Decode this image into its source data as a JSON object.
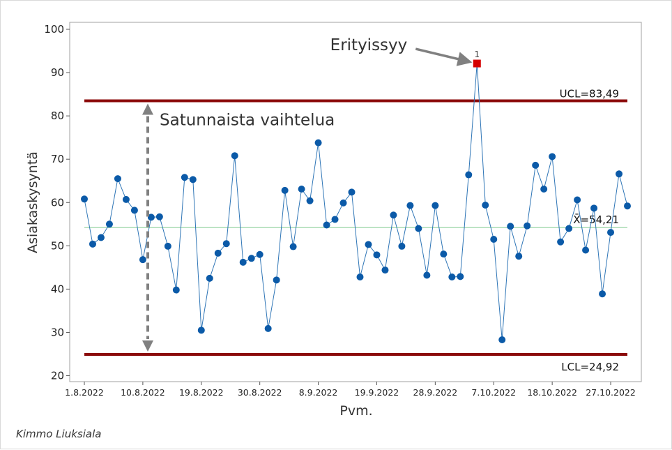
{
  "colors": {
    "series_line": "#2e75b6",
    "points": "#0b5aa8",
    "special_point": "#d50000",
    "control_limit": "#8b0a0a",
    "center_line": "#8fd19e",
    "annotation_arrow": "#808080",
    "frame": "#a0a0a0"
  },
  "chart_data": {
    "type": "line",
    "ylabel": "Asiakaskysyntä",
    "xlabel": "Pvm.",
    "ylim": [
      19,
      101
    ],
    "yticks": [
      20,
      30,
      40,
      50,
      60,
      70,
      80,
      90,
      100
    ],
    "xticks": [
      "1.8.2022",
      "10.8.2022",
      "19.8.2022",
      "30.8.2022",
      "8.9.2022",
      "19.9.2022",
      "28.9.2022",
      "7.10.2022",
      "18.10.2022",
      "27.10.2022"
    ],
    "xtick_positions": [
      0,
      7,
      14,
      21,
      28,
      35,
      42,
      49,
      56,
      63
    ],
    "grid": false,
    "series": [
      {
        "values": [
          60.8,
          50.4,
          51.9,
          55.0,
          65.5,
          60.7,
          58.2,
          46.8,
          56.6,
          56.7,
          49.9,
          39.8,
          65.8,
          65.3,
          30.5,
          42.5,
          48.3,
          50.5,
          70.8,
          46.2,
          47.1,
          48.0,
          30.9,
          42.1,
          62.8,
          49.8,
          63.1,
          60.4,
          73.8,
          54.8,
          56.1,
          59.9,
          62.4,
          42.8,
          50.3,
          47.9,
          44.4,
          57.1,
          49.9,
          59.3,
          54.0,
          43.2,
          59.3,
          48.1,
          42.8,
          42.9,
          66.4,
          92.1,
          59.4,
          51.5,
          28.3,
          54.5,
          47.6,
          54.6,
          68.6,
          63.1,
          70.6,
          50.9,
          54.0,
          60.6,
          49.0,
          58.7,
          38.9,
          53.1,
          66.6,
          59.2
        ]
      }
    ],
    "special_points": [
      {
        "index": 47,
        "label": "1"
      }
    ],
    "control_lines": {
      "ucl": {
        "value": 83.49,
        "label": "UCL=83,49"
      },
      "center": {
        "value": 54.21,
        "label": "X̄=54,21"
      },
      "lcl": {
        "value": 24.92,
        "label": "LCL=24,92"
      }
    },
    "annotations": {
      "special_cause": "Erityissyy",
      "random_variation": "Satunnaista vaihtelua"
    }
  },
  "footer": {
    "author": "Kimmo Liuksiala"
  }
}
